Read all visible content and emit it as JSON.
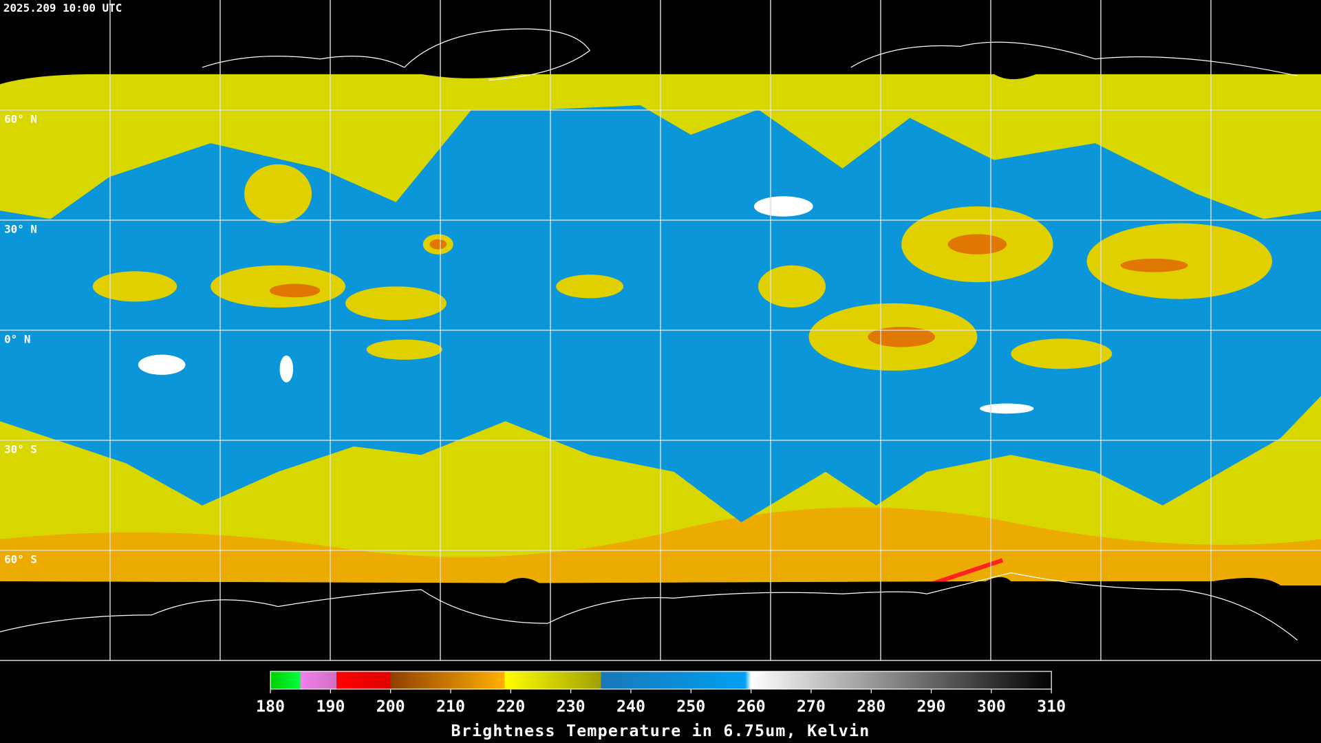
{
  "timestamp": "2025.209 10:00 UTC",
  "latitude_labels": [
    "60° N",
    "30° N",
    "0° N",
    "30° S",
    "60° S"
  ],
  "colorbar": {
    "title": "Brightness Temperature in 6.75um, Kelvin",
    "ticks": [
      180,
      190,
      200,
      210,
      220,
      230,
      240,
      250,
      260,
      270,
      280,
      290,
      300,
      310
    ],
    "stops": [
      {
        "value": 180,
        "color": "#00d000"
      },
      {
        "value": 185,
        "color": "#00ff40"
      },
      {
        "value": 185,
        "color": "#f080f0"
      },
      {
        "value": 191,
        "color": "#d070c0"
      },
      {
        "value": 191,
        "color": "#ff0000"
      },
      {
        "value": 200,
        "color": "#e00000"
      },
      {
        "value": 200,
        "color": "#904000"
      },
      {
        "value": 219,
        "color": "#ffb000"
      },
      {
        "value": 219,
        "color": "#ffff00"
      },
      {
        "value": 235,
        "color": "#a0a000"
      },
      {
        "value": 235,
        "color": "#1878b8"
      },
      {
        "value": 259,
        "color": "#00a0f0"
      },
      {
        "value": 260,
        "color": "#ffffff"
      },
      {
        "value": 310,
        "color": "#000000"
      }
    ]
  }
}
